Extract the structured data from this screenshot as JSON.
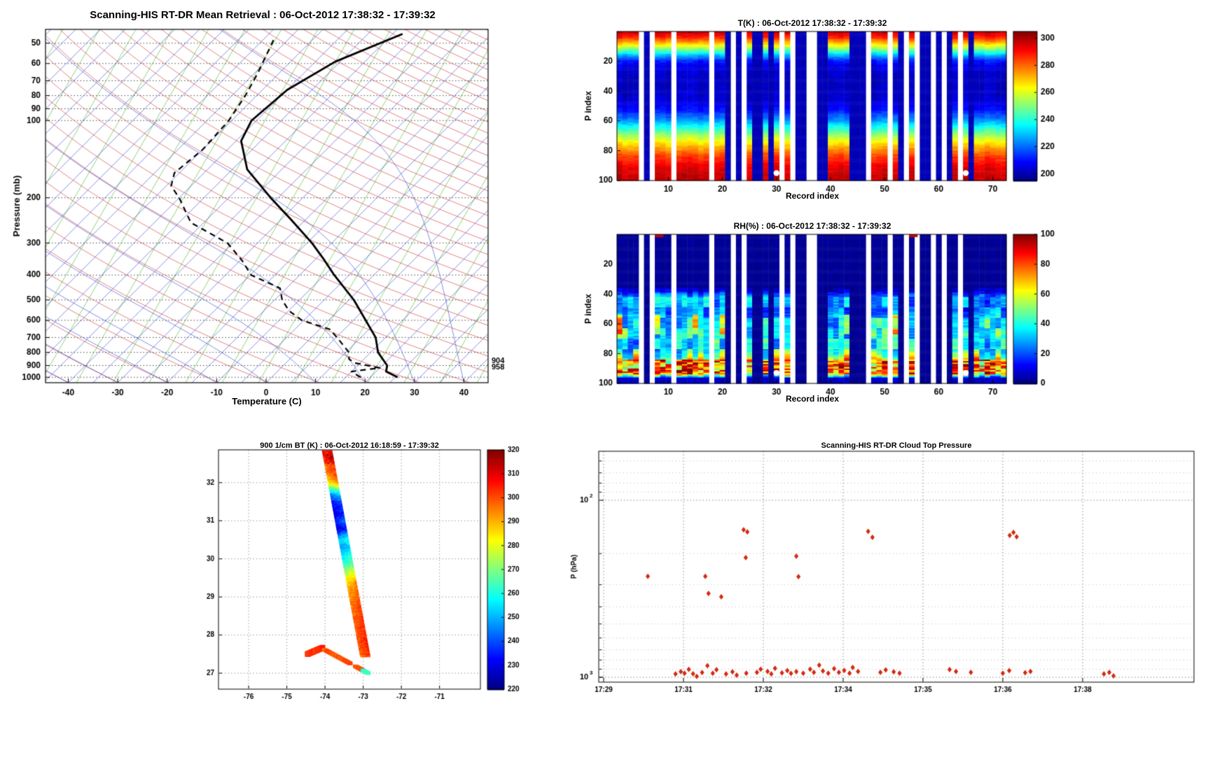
{
  "page": {
    "bg": "#ffffff"
  },
  "titles": {
    "skewt": "Scanning-HIS RT-DR Mean Retrieval : 06-Oct-2012 17:38:32 - 17:39:32",
    "t_heatmap": "T(K) : 06-Oct-2012 17:38:32 - 17:39:32",
    "rh_heatmap": "RH(%) : 06-Oct-2012 17:38:32 - 17:39:32",
    "bt_map": "900 1/cm BT (K) : 06-Oct-2012 16:18:59 - 17:39:32",
    "ctp": "Scanning-HIS RT-DR Cloud Top Pressure"
  },
  "labels": {
    "skewt_xlabel": "Temperature (C)",
    "skewt_ylabel": "Pressure (mb)",
    "record_index": "Record index",
    "p_index": "P index",
    "ctp_ylabel": "P (hPa)"
  },
  "chart_data": [
    {
      "id": "skewt",
      "type": "line",
      "title": "Scanning-HIS RT-DR Mean Retrieval : 06-Oct-2012 17:38:32 - 17:39:32",
      "xlabel": "Temperature (C)",
      "ylabel": "Pressure (mb)",
      "x_ticks": [
        -40,
        -30,
        -20,
        -10,
        0,
        10,
        20,
        30,
        40
      ],
      "y_ticks": [
        50,
        60,
        70,
        80,
        90,
        100,
        200,
        300,
        400,
        500,
        600,
        700,
        800,
        900,
        1000
      ],
      "p_range": [
        44,
        1050
      ],
      "skew_deg": 45,
      "annotations": [
        {
          "text": "904",
          "p": 904
        },
        {
          "text": "958",
          "p": 958
        }
      ],
      "series": [
        {
          "name": "temperature",
          "style": "solid",
          "points": [
            [
              25.5,
              1000
            ],
            [
              22,
              950
            ],
            [
              21,
              900
            ],
            [
              16.5,
              800
            ],
            [
              13,
              700
            ],
            [
              7.5,
              600
            ],
            [
              1,
              500
            ],
            [
              -8,
              400
            ],
            [
              -13,
              350
            ],
            [
              -19,
              300
            ],
            [
              -28,
              243
            ],
            [
              -36.5,
              200
            ],
            [
              -47,
              155
            ],
            [
              -54,
              120
            ],
            [
              -56,
              100
            ],
            [
              -55,
              76
            ],
            [
              -51,
              59
            ],
            [
              -43,
              46
            ]
          ]
        },
        {
          "name": "dewpoint",
          "style": "dashed",
          "points": [
            [
              18,
              1000
            ],
            [
              15,
              950
            ],
            [
              20,
              920
            ],
            [
              14,
              880
            ],
            [
              12,
              850
            ],
            [
              10.6,
              800
            ],
            [
              5.2,
              700
            ],
            [
              2,
              650
            ],
            [
              -5.4,
              600
            ],
            [
              -10,
              550
            ],
            [
              -13.5,
              500
            ],
            [
              -16.3,
              450
            ],
            [
              -24.8,
              400
            ],
            [
              -29.7,
              350
            ],
            [
              -36.1,
              300
            ],
            [
              -47.6,
              250
            ],
            [
              -55,
              200
            ],
            [
              -59,
              180
            ],
            [
              -61,
              160
            ],
            [
              -60,
              130
            ],
            [
              -60.6,
              100
            ],
            [
              -62.3,
              80
            ],
            [
              -64.4,
              65
            ],
            [
              -68,
              48
            ]
          ]
        }
      ],
      "background": {
        "isotherms": {
          "color": "#2233cc",
          "min": -120,
          "max": 45,
          "step": 5
        },
        "dry_adiabats": {
          "color": "#cc2222",
          "theta_min": 230,
          "theta_max": 600,
          "step": 10
        },
        "moist_adiabats": {
          "color": "#2233cc",
          "t0_min": -40,
          "t0_max": 40,
          "step": 10
        },
        "mixing_lines": {
          "color": "#55bb33",
          "spacing_px": 52,
          "slope": 0.58
        }
      }
    },
    {
      "id": "t_heatmap",
      "type": "heatmap",
      "mode": "T",
      "title": "T(K) : 06-Oct-2012 17:38:32 - 17:39:32",
      "xlabel": "Record index",
      "ylabel": "P index",
      "x_ticks": [
        10,
        20,
        30,
        40,
        50,
        60,
        70
      ],
      "y_ticks": [
        20,
        40,
        60,
        80,
        100
      ],
      "n_records": 72,
      "n_levels": 100,
      "value_range": [
        195,
        305
      ],
      "colorbar_ticks": [
        200,
        220,
        240,
        260,
        280,
        300
      ],
      "record_status": "oooogcgooogoooooogoocgcgoccocogogccggccoooocccgooogocgogccgcgcogocoooooo",
      "profile": [
        [
          0,
          298
        ],
        [
          2,
          293
        ],
        [
          4,
          285
        ],
        [
          7,
          272
        ],
        [
          10,
          258
        ],
        [
          13,
          242
        ],
        [
          16,
          226
        ],
        [
          19,
          213
        ],
        [
          22,
          207
        ],
        [
          28,
          203
        ],
        [
          36,
          202
        ],
        [
          45,
          204
        ],
        [
          52,
          210
        ],
        [
          58,
          222
        ],
        [
          63,
          236
        ],
        [
          68,
          250
        ],
        [
          73,
          263
        ],
        [
          78,
          274
        ],
        [
          83,
          284
        ],
        [
          88,
          291
        ],
        [
          93,
          296
        ],
        [
          100,
          298
        ]
      ],
      "cloud_value": 200,
      "markers": {
        "records": [
          30,
          65
        ],
        "level": 95
      }
    },
    {
      "id": "rh_heatmap",
      "type": "heatmap",
      "mode": "RH",
      "title": "RH(%) : 06-Oct-2012 17:38:32 - 17:39:32",
      "xlabel": "Record index",
      "ylabel": "P index",
      "x_ticks": [
        10,
        20,
        30,
        40,
        50,
        60,
        70
      ],
      "y_ticks": [
        20,
        40,
        60,
        80,
        100
      ],
      "n_records": 72,
      "n_levels": 100,
      "value_range": [
        0,
        100
      ],
      "colorbar_ticks": [
        0,
        20,
        40,
        60,
        80,
        100
      ],
      "record_status": "oooogcgooogoooooogoocgcgoccocogogccggccoooocccgooogocgogccgcgcogocoooooo",
      "profile": [
        [
          0,
          2
        ],
        [
          34,
          2
        ],
        [
          38,
          12
        ],
        [
          42,
          30
        ],
        [
          46,
          28
        ],
        [
          50,
          24
        ],
        [
          54,
          30
        ],
        [
          58,
          38
        ],
        [
          62,
          34
        ],
        [
          66,
          40
        ],
        [
          70,
          36
        ],
        [
          74,
          34
        ],
        [
          78,
          40
        ],
        [
          82,
          52
        ],
        [
          85,
          70
        ],
        [
          88,
          82
        ],
        [
          91,
          84
        ],
        [
          93,
          72
        ],
        [
          95,
          30
        ],
        [
          97,
          10
        ],
        [
          100,
          6
        ]
      ],
      "cloud_value": 1,
      "markers": {
        "records": [
          30,
          65
        ],
        "level": 93
      },
      "top_specks": [
        8,
        55
      ]
    },
    {
      "id": "bt_map",
      "type": "heatmap",
      "title": "900 1/cm BT (K) : 06-Oct-2012 16:18:59 - 17:39:32",
      "x_ticks": [
        -76,
        -75,
        -74,
        -73,
        -72,
        -71
      ],
      "y_ticks": [
        27,
        28,
        29,
        30,
        31,
        32
      ],
      "lon_range": [
        -76.79,
        -69.93
      ],
      "lat_range": [
        26.58,
        32.86
      ],
      "value_range": [
        220,
        320
      ],
      "colorbar_ticks": [
        220,
        230,
        240,
        250,
        260,
        270,
        280,
        290,
        300,
        310,
        320
      ],
      "main_track": {
        "lat_start": 32.85,
        "lat_end": 27.45,
        "lon_start": -73.95,
        "lon_end": -72.95,
        "halfwidth": 0.13,
        "bt_points": [
          [
            27.45,
            299
          ],
          [
            27.6,
            301
          ],
          [
            27.9,
            302
          ],
          [
            28.3,
            300
          ],
          [
            28.8,
            298
          ],
          [
            29.2,
            294
          ],
          [
            29.45,
            288
          ],
          [
            29.6,
            280
          ],
          [
            29.75,
            272
          ],
          [
            29.9,
            263
          ],
          [
            30.1,
            258
          ],
          [
            30.3,
            250
          ],
          [
            30.5,
            256
          ],
          [
            30.65,
            245
          ],
          [
            30.8,
            231
          ],
          [
            31.0,
            240
          ],
          [
            31.2,
            232
          ],
          [
            31.5,
            237
          ],
          [
            31.7,
            250
          ],
          [
            31.85,
            268
          ],
          [
            32.0,
            288
          ],
          [
            32.2,
            296
          ],
          [
            32.5,
            300
          ],
          [
            32.7,
            307
          ],
          [
            32.85,
            303
          ]
        ]
      },
      "hooks": [
        {
          "from": [
            -74.46,
            27.5
          ],
          "to": [
            -74.06,
            27.67
          ],
          "halfwidth": 0.07,
          "bt": 302
        },
        {
          "from": [
            -74.02,
            27.62
          ],
          "to": [
            -72.87,
            27.0
          ],
          "halfwidth": 0.045,
          "bt": 300,
          "gap": [
            0.6,
            0.7
          ],
          "tip_start": 0.88,
          "tip_bt": 262
        }
      ]
    },
    {
      "id": "ctp",
      "type": "scatter",
      "title": "Scanning-HIS RT-DR Cloud Top Pressure",
      "ylabel": "P (hPa)",
      "x_tick_labels": [
        "17:29",
        "17:31",
        "17:32",
        "17:34",
        "17:35",
        "17:36",
        "17:38"
      ],
      "x_tick_minutes": [
        0,
        1.5,
        3,
        4.5,
        6,
        7.5,
        9
      ],
      "t_range": [
        -0.1,
        11.1
      ],
      "p_range_log": [
        53,
        1066
      ],
      "y_major_ticks": [
        100,
        1000
      ],
      "marker_color": "#d22b10",
      "points": [
        [
          0.83,
          269
        ],
        [
          1.91,
          269
        ],
        [
          1.97,
          336
        ],
        [
          2.21,
          351
        ],
        [
          2.63,
          147
        ],
        [
          2.7,
          151
        ],
        [
          2.67,
          211
        ],
        [
          3.62,
          207
        ],
        [
          3.66,
          270
        ],
        [
          4.97,
          150
        ],
        [
          5.05,
          162
        ],
        [
          7.63,
          158
        ],
        [
          7.7,
          152
        ],
        [
          7.76,
          161
        ],
        [
          1.35,
          958
        ],
        [
          1.45,
          930
        ],
        [
          1.52,
          948
        ],
        [
          1.6,
          902
        ],
        [
          1.68,
          955
        ],
        [
          1.75,
          988
        ],
        [
          1.85,
          940
        ],
        [
          1.95,
          860
        ],
        [
          2.05,
          948
        ],
        [
          2.12,
          906
        ],
        [
          2.3,
          958
        ],
        [
          2.42,
          932
        ],
        [
          2.5,
          972
        ],
        [
          2.68,
          948
        ],
        [
          2.88,
          938
        ],
        [
          2.95,
          900
        ],
        [
          3.08,
          928
        ],
        [
          3.15,
          958
        ],
        [
          3.22,
          890
        ],
        [
          3.35,
          944
        ],
        [
          3.45,
          918
        ],
        [
          3.52,
          952
        ],
        [
          3.62,
          930
        ],
        [
          3.75,
          948
        ],
        [
          3.88,
          900
        ],
        [
          3.95,
          938
        ],
        [
          4.05,
          855
        ],
        [
          4.12,
          922
        ],
        [
          4.22,
          948
        ],
        [
          4.33,
          895
        ],
        [
          4.42,
          938
        ],
        [
          4.52,
          915
        ],
        [
          4.62,
          948
        ],
        [
          4.68,
          880
        ],
        [
          4.78,
          928
        ],
        [
          5.2,
          938
        ],
        [
          5.3,
          908
        ],
        [
          5.45,
          932
        ],
        [
          5.56,
          948
        ],
        [
          6.5,
          905
        ],
        [
          6.62,
          928
        ],
        [
          6.9,
          938
        ],
        [
          7.5,
          948
        ],
        [
          7.62,
          918
        ],
        [
          7.92,
          942
        ],
        [
          8.02,
          928
        ],
        [
          9.4,
          958
        ],
        [
          9.5,
          938
        ],
        [
          9.58,
          982
        ]
      ]
    }
  ]
}
